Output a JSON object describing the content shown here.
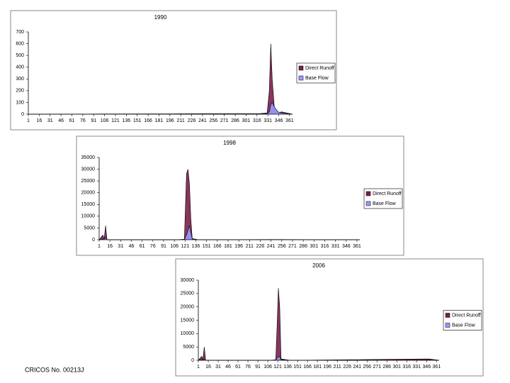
{
  "footer": "CRICOS No. 00213J",
  "chart_data": [
    {
      "type": "area",
      "title": "1990",
      "x": [
        1,
        100,
        200,
        320,
        330,
        333,
        335,
        337,
        340,
        345,
        350,
        365
      ],
      "series": [
        {
          "name": "Direct Runoff",
          "color": "#7b1f4a",
          "values": [
            0,
            2,
            3,
            5,
            10,
            200,
            600,
            300,
            50,
            10,
            20,
            0
          ]
        },
        {
          "name": "Base Flow",
          "color": "#9999ff",
          "values": [
            0,
            1,
            1,
            2,
            5,
            20,
            80,
            100,
            60,
            20,
            10,
            0
          ]
        }
      ],
      "xlim": [
        1,
        365
      ],
      "xticks": [
        1,
        16,
        31,
        46,
        61,
        76,
        91,
        106,
        121,
        136,
        151,
        166,
        181,
        196,
        211,
        226,
        241,
        256,
        271,
        286,
        301,
        316,
        331,
        346,
        361
      ],
      "ylim": [
        0,
        700
      ],
      "yticks": [
        0,
        100,
        200,
        300,
        400,
        500,
        600,
        700
      ]
    },
    {
      "type": "area",
      "title": "1998",
      "x": [
        1,
        6,
        8,
        10,
        12,
        30,
        110,
        120,
        123,
        125,
        127,
        129,
        131,
        140,
        250,
        365
      ],
      "series": [
        {
          "name": "Direct Runoff",
          "color": "#7b1f4a",
          "values": [
            0,
            2000,
            500,
            6000,
            0,
            0,
            0,
            200,
            28000,
            30000,
            24000,
            9000,
            500,
            0,
            100,
            0
          ]
        },
        {
          "name": "Base Flow",
          "color": "#9999ff",
          "values": [
            0,
            300,
            200,
            800,
            0,
            0,
            0,
            100,
            2000,
            4000,
            6000,
            3000,
            300,
            0,
            50,
            0
          ]
        }
      ],
      "xlim": [
        1,
        365
      ],
      "xticks": [
        1,
        16,
        31,
        46,
        61,
        76,
        91,
        106,
        121,
        136,
        151,
        166,
        181,
        196,
        211,
        226,
        241,
        256,
        271,
        286,
        301,
        316,
        331,
        346,
        361
      ],
      "ylim": [
        0,
        35000
      ],
      "yticks": [
        0,
        5000,
        10000,
        15000,
        20000,
        25000,
        30000,
        35000
      ]
    },
    {
      "type": "area",
      "title": "2006",
      "x": [
        1,
        6,
        8,
        10,
        12,
        30,
        110,
        118,
        120,
        122,
        124,
        126,
        140,
        350,
        365
      ],
      "series": [
        {
          "name": "Direct Runoff",
          "color": "#7b1f4a",
          "values": [
            0,
            1500,
            500,
            5000,
            0,
            0,
            0,
            200,
            13000,
            27000,
            20000,
            500,
            0,
            500,
            0
          ]
        },
        {
          "name": "Base Flow",
          "color": "#9999ff",
          "values": [
            0,
            200,
            100,
            400,
            0,
            0,
            0,
            100,
            800,
            1500,
            1200,
            200,
            0,
            100,
            0
          ]
        }
      ],
      "xlim": [
        1,
        365
      ],
      "xticks": [
        1,
        16,
        31,
        46,
        61,
        76,
        91,
        106,
        121,
        136,
        151,
        166,
        181,
        196,
        211,
        226,
        241,
        256,
        271,
        286,
        301,
        316,
        331,
        346,
        361
      ],
      "ylim": [
        0,
        30000
      ],
      "yticks": [
        0,
        5000,
        10000,
        15000,
        20000,
        25000,
        30000
      ]
    }
  ]
}
